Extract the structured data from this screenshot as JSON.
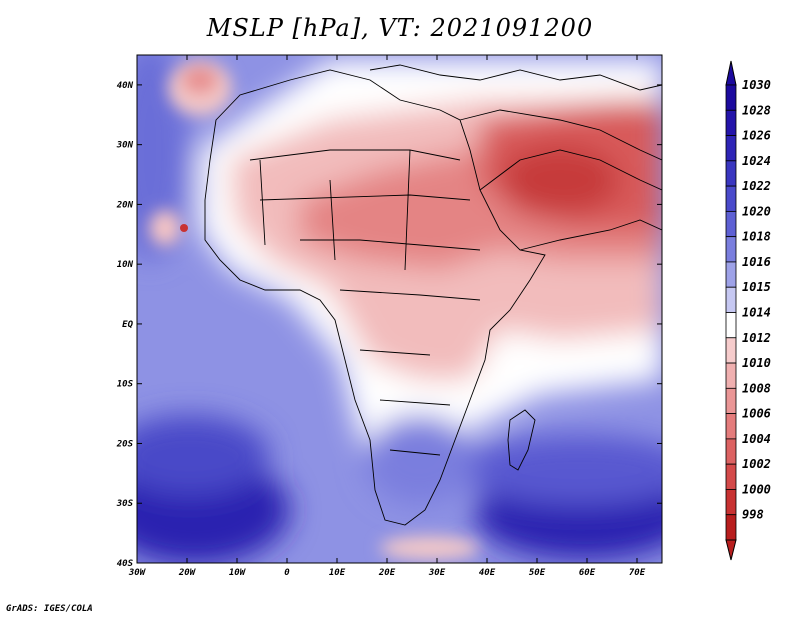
{
  "title": "MSLP [hPa], VT: 2021091200",
  "credit": "GrADS: IGES/COLA",
  "map": {
    "lon_range": [
      -30,
      75
    ],
    "lat_range": [
      -40,
      45
    ],
    "lon_ticks": [
      {
        "value": -30,
        "label": "30W"
      },
      {
        "value": -20,
        "label": "20W"
      },
      {
        "value": -10,
        "label": "10W"
      },
      {
        "value": 0,
        "label": "0"
      },
      {
        "value": 10,
        "label": "10E"
      },
      {
        "value": 20,
        "label": "20E"
      },
      {
        "value": 30,
        "label": "30E"
      },
      {
        "value": 40,
        "label": "40E"
      },
      {
        "value": 50,
        "label": "50E"
      },
      {
        "value": 60,
        "label": "60E"
      },
      {
        "value": 70,
        "label": "70E"
      }
    ],
    "lat_ticks": [
      {
        "value": 40,
        "label": "40N"
      },
      {
        "value": 30,
        "label": "30N"
      },
      {
        "value": 20,
        "label": "20N"
      },
      {
        "value": 10,
        "label": "10N"
      },
      {
        "value": 0,
        "label": "EQ"
      },
      {
        "value": -10,
        "label": "10S"
      },
      {
        "value": -20,
        "label": "20S"
      },
      {
        "value": -30,
        "label": "30S"
      },
      {
        "value": -40,
        "label": "40S"
      }
    ]
  },
  "colorbar": {
    "levels": [
      {
        "label": "1030",
        "color": "#1c0a9e"
      },
      {
        "label": "1028",
        "color": "#2414aa"
      },
      {
        "label": "1026",
        "color": "#2e24b6"
      },
      {
        "label": "1024",
        "color": "#3a36c0"
      },
      {
        "label": "1022",
        "color": "#4a4acb"
      },
      {
        "label": "1020",
        "color": "#5e60d4"
      },
      {
        "label": "1018",
        "color": "#7a7ede"
      },
      {
        "label": "1016",
        "color": "#9ea2e8"
      },
      {
        "label": "1015",
        "color": "#c6c8f2"
      },
      {
        "label": "1014",
        "color": "#ffffff"
      },
      {
        "label": "1012",
        "color": "#f6cccc"
      },
      {
        "label": "1010",
        "color": "#f0b0b0"
      },
      {
        "label": "1008",
        "color": "#ea9696"
      },
      {
        "label": "1006",
        "color": "#e47c7c"
      },
      {
        "label": "1004",
        "color": "#dc6262"
      },
      {
        "label": "1002",
        "color": "#d44a4a"
      },
      {
        "label": "1000",
        "color": "#c83232"
      },
      {
        "label": "998",
        "color": "#b81e1e"
      }
    ]
  }
}
